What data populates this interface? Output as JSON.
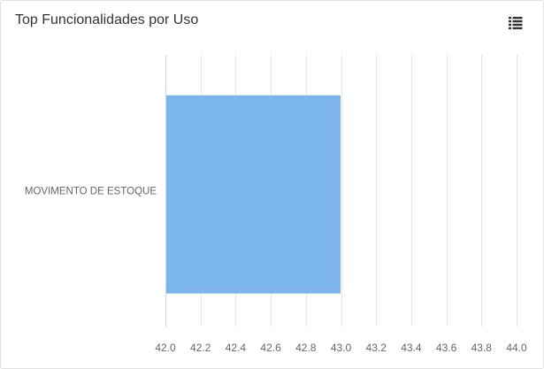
{
  "header": {
    "title": "Top Funcionalidades por Uso",
    "menu_icon": "list-icon"
  },
  "chart_data": {
    "type": "bar",
    "orientation": "horizontal",
    "title": "Top Funcionalidades por Uso",
    "categories": [
      "MOVIMENTO DE ESTOQUE"
    ],
    "series": [
      {
        "values": [
          43.0
        ]
      }
    ],
    "xlim": [
      42.0,
      44.0
    ],
    "xticks": [
      "42.0",
      "42.2",
      "42.4",
      "42.6",
      "42.8",
      "43.0",
      "43.2",
      "43.4",
      "43.6",
      "43.8",
      "44.0"
    ],
    "grid": true,
    "legend": "none",
    "bar_color": "#7cb5ec",
    "grid_color": "#e6e6e6"
  }
}
